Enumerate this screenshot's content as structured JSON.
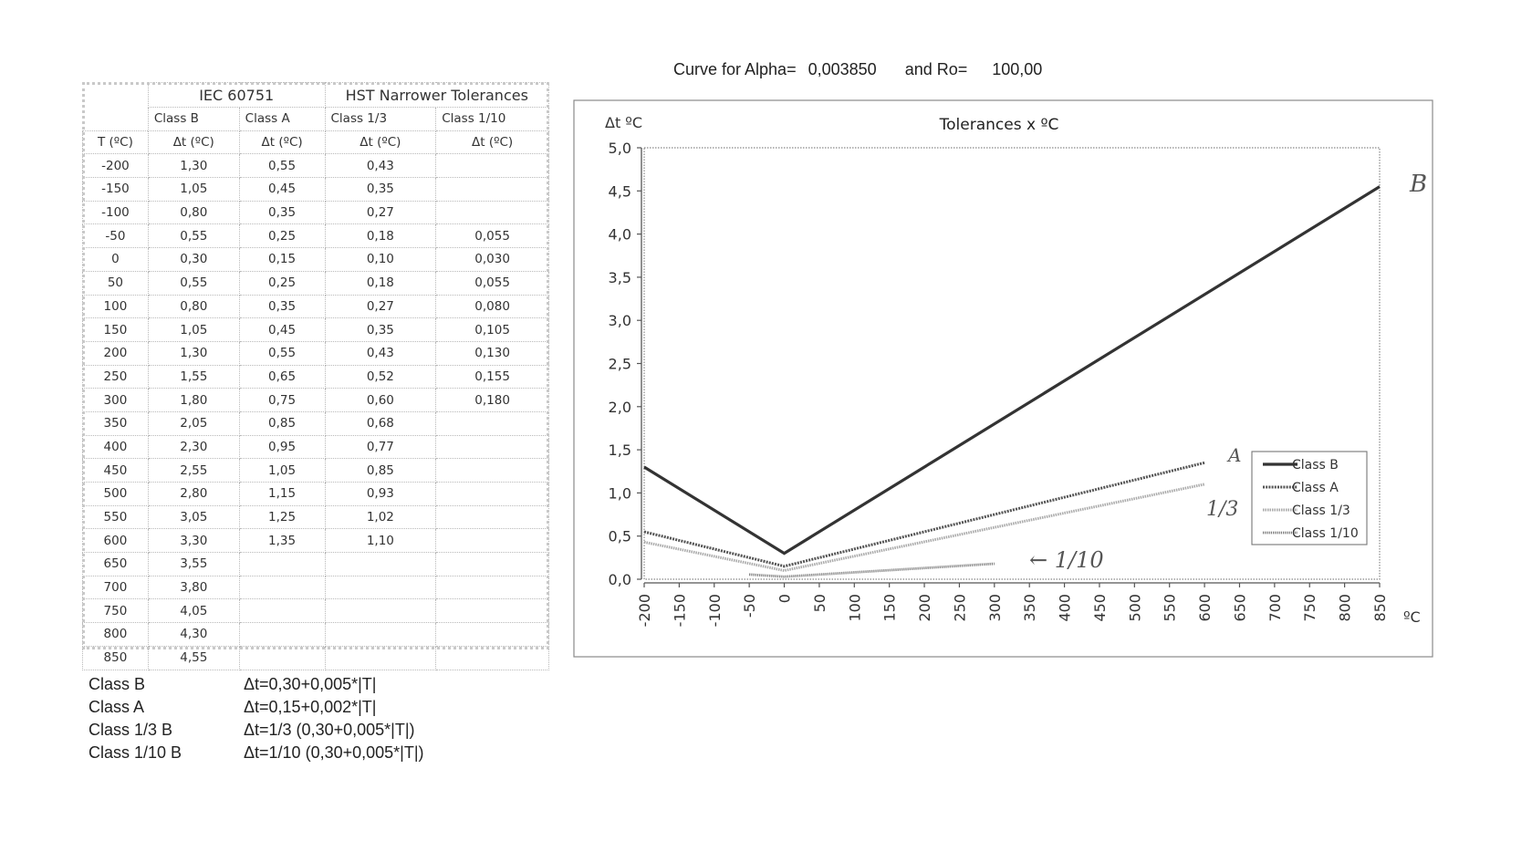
{
  "header": {
    "curve_for_alpha_label": "Curve for Alpha=",
    "alpha_value": "0,003850",
    "and_ro_label": "and Ro=",
    "ro_value": "100,00"
  },
  "table": {
    "group_headers": [
      "IEC 60751",
      "HST Narrower Tolerances"
    ],
    "class_headers": [
      "Class B",
      "Class A",
      "Class 1/3",
      "Class 1/10"
    ],
    "unit_headers": [
      "T (ºC)",
      "Δt (ºC)",
      "Δt (ºC)",
      "Δt (ºC)",
      "Δt (ºC)"
    ],
    "rows": [
      [
        "-200",
        "1,30",
        "0,55",
        "0,43",
        ""
      ],
      [
        "-150",
        "1,05",
        "0,45",
        "0,35",
        ""
      ],
      [
        "-100",
        "0,80",
        "0,35",
        "0,27",
        ""
      ],
      [
        "-50",
        "0,55",
        "0,25",
        "0,18",
        "0,055"
      ],
      [
        "0",
        "0,30",
        "0,15",
        "0,10",
        "0,030"
      ],
      [
        "50",
        "0,55",
        "0,25",
        "0,18",
        "0,055"
      ],
      [
        "100",
        "0,80",
        "0,35",
        "0,27",
        "0,080"
      ],
      [
        "150",
        "1,05",
        "0,45",
        "0,35",
        "0,105"
      ],
      [
        "200",
        "1,30",
        "0,55",
        "0,43",
        "0,130"
      ],
      [
        "250",
        "1,55",
        "0,65",
        "0,52",
        "0,155"
      ],
      [
        "300",
        "1,80",
        "0,75",
        "0,60",
        "0,180"
      ],
      [
        "350",
        "2,05",
        "0,85",
        "0,68",
        ""
      ],
      [
        "400",
        "2,30",
        "0,95",
        "0,77",
        ""
      ],
      [
        "450",
        "2,55",
        "1,05",
        "0,85",
        ""
      ],
      [
        "500",
        "2,80",
        "1,15",
        "0,93",
        ""
      ],
      [
        "550",
        "3,05",
        "1,25",
        "1,02",
        ""
      ],
      [
        "600",
        "3,30",
        "1,35",
        "1,10",
        ""
      ],
      [
        "650",
        "3,55",
        "",
        "",
        ""
      ],
      [
        "700",
        "3,80",
        "",
        "",
        ""
      ],
      [
        "750",
        "4,05",
        "",
        "",
        ""
      ],
      [
        "800",
        "4,30",
        "",
        "",
        ""
      ],
      [
        "850",
        "4,55",
        "",
        "",
        ""
      ]
    ]
  },
  "formulas": [
    {
      "name": "Class B",
      "expr": "Δt=0,30+0,005*|T|"
    },
    {
      "name": "Class A",
      "expr": "Δt=0,15+0,002*|T|"
    },
    {
      "name": "Class 1/3 B",
      "expr": "Δt=1/3 (0,30+0,005*|T|)"
    },
    {
      "name": "Class 1/10 B",
      "expr": "Δt=1/10 (0,30+0,005*|T|)"
    }
  ],
  "chart_data": {
    "type": "line",
    "title": "Tolerances x ºC",
    "ylabel": "Δt ºC",
    "xlabel": "ºC",
    "xlim": [
      -200,
      850
    ],
    "ylim": [
      0,
      5
    ],
    "xticks": [
      -200,
      -150,
      -100,
      -50,
      0,
      50,
      100,
      150,
      200,
      250,
      300,
      350,
      400,
      450,
      500,
      550,
      600,
      650,
      700,
      750,
      800,
      850
    ],
    "yticks": [
      "0,0",
      "0,5",
      "1,0",
      "1,5",
      "2,0",
      "2,5",
      "3,0",
      "3,5",
      "4,0",
      "4,5",
      "5,0"
    ],
    "legend_position": "right",
    "series": [
      {
        "name": "Class B",
        "color": "#333333",
        "x": [
          -200,
          0,
          850
        ],
        "y": [
          1.3,
          0.3,
          4.55
        ]
      },
      {
        "name": "Class A",
        "color": "#555555",
        "x": [
          -200,
          0,
          600
        ],
        "y": [
          0.55,
          0.15,
          1.35
        ]
      },
      {
        "name": "Class 1/3",
        "color": "#a9a9a9",
        "x": [
          -200,
          0,
          600
        ],
        "y": [
          0.43,
          0.1,
          1.1
        ]
      },
      {
        "name": "Class 1/10",
        "color": "#7a7a7a",
        "x": [
          -50,
          0,
          300
        ],
        "y": [
          0.055,
          0.03,
          0.18
        ]
      }
    ],
    "annotations": [
      "B",
      "A",
      "1/3",
      "← 1/10"
    ]
  }
}
